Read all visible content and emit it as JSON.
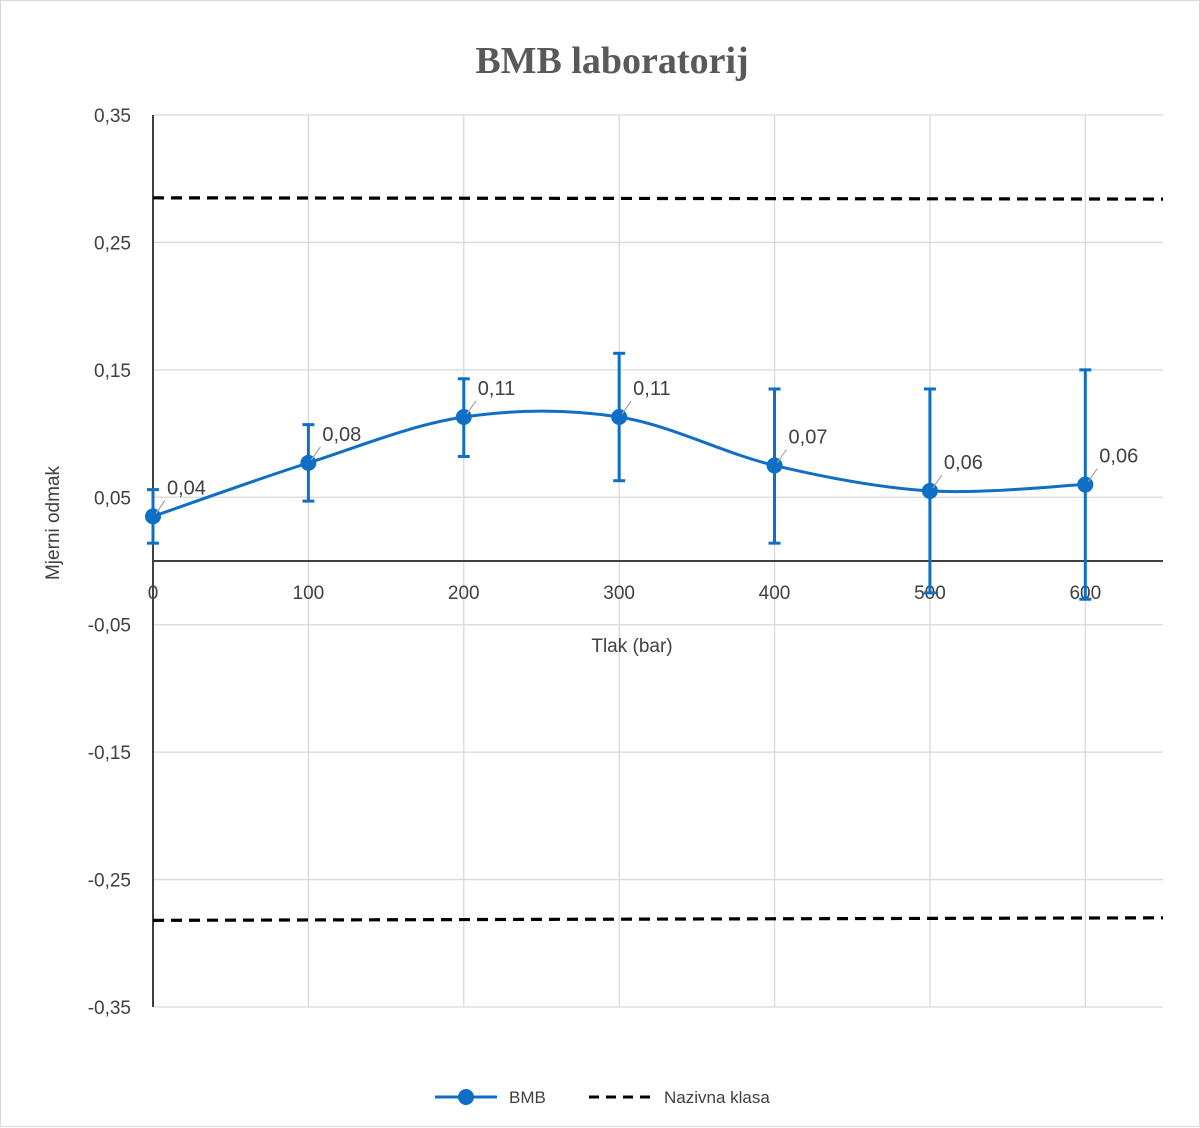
{
  "chart_data": {
    "type": "line",
    "title": "BMB laboratorij",
    "xlabel": "Tlak (bar)",
    "ylabel": "Mjerni odmak",
    "x": [
      0,
      100,
      200,
      300,
      400,
      500,
      600
    ],
    "x_tick_labels": [
      "0",
      "100",
      "200",
      "300",
      "400",
      "500",
      "600"
    ],
    "xlim": [
      0,
      650
    ],
    "ylim": [
      -0.35,
      0.35
    ],
    "y_ticks": [
      0.35,
      0.25,
      0.15,
      0.05,
      -0.05,
      -0.15,
      -0.25,
      -0.35
    ],
    "y_tick_labels": [
      "0,35",
      "0,25",
      "0,15",
      "0,05",
      "-0,05",
      "-0,15",
      "-0,25",
      "-0,35"
    ],
    "grid": true,
    "legend_position": "bottom",
    "series": [
      {
        "name": "BMB",
        "kind": "line-markers-smooth",
        "color": "#0f6fc6",
        "values": [
          0.035,
          0.077,
          0.113,
          0.113,
          0.075,
          0.055,
          0.06
        ],
        "data_labels": [
          "0,04",
          "0,08",
          "0,11",
          "0,11",
          "0,07",
          "0,06",
          "0,06"
        ],
        "error_low": [
          0.014,
          0.047,
          0.082,
          0.063,
          0.014,
          -0.025,
          -0.03
        ],
        "error_high": [
          0.056,
          0.107,
          0.143,
          0.163,
          0.135,
          0.135,
          0.15
        ]
      },
      {
        "name": "Nazivna klasa",
        "kind": "dashed-lines",
        "color": "#000000",
        "upper": {
          "x": [
            0,
            650
          ],
          "y": [
            0.285,
            0.284
          ]
        },
        "lower": {
          "x": [
            0,
            650
          ],
          "y": [
            -0.282,
            -0.28
          ]
        }
      }
    ]
  }
}
